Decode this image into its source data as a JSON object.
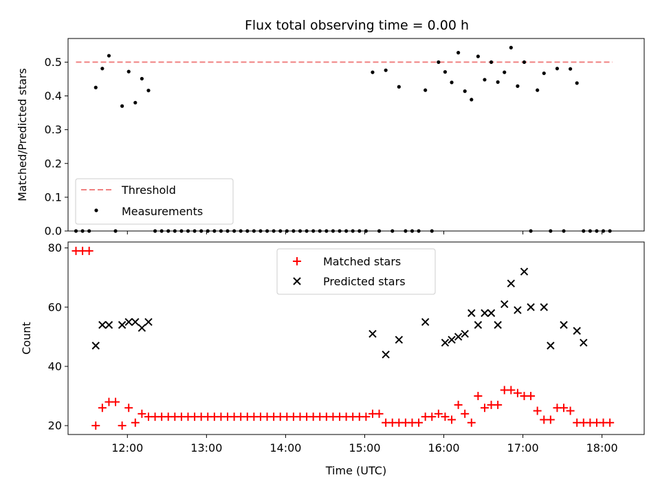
{
  "chart_data": [
    {
      "type": "scatter",
      "title": "Flux total observing time = 0.00 h",
      "xlabel": "",
      "ylabel": "Matched/Predicted stars",
      "xlim": [
        "11:15",
        "18:32"
      ],
      "ylim": [
        0,
        0.57
      ],
      "yticks": [
        "0.0",
        "0.1",
        "0.2",
        "0.3",
        "0.4",
        "0.5"
      ],
      "xtick_labels_shown": false,
      "threshold": {
        "name": "Threshold",
        "value": 0.5,
        "x_range": [
          "11:21",
          "18:08"
        ],
        "color": "#f08080",
        "style": "dashed"
      },
      "legend": {
        "placement": "lower-left",
        "entries": [
          "Threshold",
          "Measurements"
        ]
      },
      "series": [
        {
          "name": "Measurements",
          "marker": "dot",
          "color": "#000000",
          "points": [
            [
              "11:21",
              0
            ],
            [
              "11:26",
              0
            ],
            [
              "11:31",
              0
            ],
            [
              "11:36",
              0.425
            ],
            [
              "11:41",
              0.481
            ],
            [
              "11:46",
              0.519
            ],
            [
              "11:51",
              0
            ],
            [
              "11:56",
              0.37
            ],
            [
              "12:01",
              0.472
            ],
            [
              "12:06",
              0.38
            ],
            [
              "12:11",
              0.451
            ],
            [
              "12:16",
              0.416
            ],
            [
              "12:21",
              0
            ],
            [
              "12:26",
              0
            ],
            [
              "12:31",
              0
            ],
            [
              "12:36",
              0
            ],
            [
              "12:41",
              0
            ],
            [
              "12:46",
              0
            ],
            [
              "12:51",
              0
            ],
            [
              "12:56",
              0
            ],
            [
              "13:01",
              0
            ],
            [
              "13:06",
              0
            ],
            [
              "13:11",
              0
            ],
            [
              "13:16",
              0
            ],
            [
              "13:21",
              0
            ],
            [
              "13:26",
              0
            ],
            [
              "13:31",
              0
            ],
            [
              "13:36",
              0
            ],
            [
              "13:41",
              0
            ],
            [
              "13:46",
              0
            ],
            [
              "13:51",
              0
            ],
            [
              "13:56",
              0
            ],
            [
              "14:01",
              0
            ],
            [
              "14:06",
              0
            ],
            [
              "14:11",
              0
            ],
            [
              "14:16",
              0
            ],
            [
              "14:21",
              0
            ],
            [
              "14:26",
              0
            ],
            [
              "14:31",
              0
            ],
            [
              "14:36",
              0
            ],
            [
              "14:41",
              0
            ],
            [
              "14:46",
              0
            ],
            [
              "14:51",
              0
            ],
            [
              "14:56",
              0
            ],
            [
              "15:01",
              0
            ],
            [
              "15:06",
              0.47
            ],
            [
              "15:11",
              0
            ],
            [
              "15:16",
              0.476
            ],
            [
              "15:21",
              0
            ],
            [
              "15:26",
              0.427
            ],
            [
              "15:31",
              0
            ],
            [
              "15:36",
              0
            ],
            [
              "15:41",
              0
            ],
            [
              "15:46",
              0.417
            ],
            [
              "15:51",
              0
            ],
            [
              "15:56",
              0.5
            ],
            [
              "16:01",
              0.471
            ],
            [
              "16:06",
              0.44
            ],
            [
              "16:11",
              0.528
            ],
            [
              "16:16",
              0.414
            ],
            [
              "16:21",
              0.389
            ],
            [
              "16:26",
              0.517
            ],
            [
              "16:31",
              0.448
            ],
            [
              "16:36",
              0.5
            ],
            [
              "16:41",
              0.441
            ],
            [
              "16:46",
              0.47
            ],
            [
              "16:51",
              0.543
            ],
            [
              "16:56",
              0.429
            ],
            [
              "17:01",
              0.5
            ],
            [
              "17:06",
              0
            ],
            [
              "17:11",
              0.417
            ],
            [
              "17:16",
              0.467
            ],
            [
              "17:21",
              0
            ],
            [
              "17:26",
              0.481
            ],
            [
              "17:31",
              0
            ],
            [
              "17:36",
              0.48
            ],
            [
              "17:41",
              0.438
            ],
            [
              "17:46",
              0
            ],
            [
              "17:51",
              0
            ],
            [
              "17:56",
              0
            ],
            [
              "18:01",
              0
            ],
            [
              "18:06",
              0
            ]
          ]
        }
      ]
    },
    {
      "type": "scatter",
      "title": "",
      "xlabel": "Time (UTC)",
      "ylabel": "Count",
      "xlim": [
        "11:15",
        "18:32"
      ],
      "ylim": [
        17,
        82
      ],
      "xticks": [
        "12:00",
        "13:00",
        "14:00",
        "15:00",
        "16:00",
        "17:00",
        "18:00"
      ],
      "yticks": [
        "20",
        "40",
        "60",
        "80"
      ],
      "legend": {
        "placement": "upper-center",
        "entries": [
          "Matched stars",
          "Predicted stars"
        ]
      },
      "series": [
        {
          "name": "Matched stars",
          "marker": "plus",
          "color": "#ff0000",
          "points": [
            [
              "11:21",
              79
            ],
            [
              "11:26",
              79
            ],
            [
              "11:31",
              79
            ],
            [
              "11:36",
              20
            ],
            [
              "11:41",
              26
            ],
            [
              "11:46",
              28
            ],
            [
              "11:51",
              28
            ],
            [
              "11:56",
              20
            ],
            [
              "12:01",
              26
            ],
            [
              "12:06",
              21
            ],
            [
              "12:11",
              24
            ],
            [
              "12:16",
              23
            ],
            [
              "12:21",
              23
            ],
            [
              "12:26",
              23
            ],
            [
              "12:31",
              23
            ],
            [
              "12:36",
              23
            ],
            [
              "12:41",
              23
            ],
            [
              "12:46",
              23
            ],
            [
              "12:51",
              23
            ],
            [
              "12:56",
              23
            ],
            [
              "13:01",
              23
            ],
            [
              "13:06",
              23
            ],
            [
              "13:11",
              23
            ],
            [
              "13:16",
              23
            ],
            [
              "13:21",
              23
            ],
            [
              "13:26",
              23
            ],
            [
              "13:31",
              23
            ],
            [
              "13:36",
              23
            ],
            [
              "13:41",
              23
            ],
            [
              "13:46",
              23
            ],
            [
              "13:51",
              23
            ],
            [
              "13:56",
              23
            ],
            [
              "14:01",
              23
            ],
            [
              "14:06",
              23
            ],
            [
              "14:11",
              23
            ],
            [
              "14:16",
              23
            ],
            [
              "14:21",
              23
            ],
            [
              "14:26",
              23
            ],
            [
              "14:31",
              23
            ],
            [
              "14:36",
              23
            ],
            [
              "14:41",
              23
            ],
            [
              "14:46",
              23
            ],
            [
              "14:51",
              23
            ],
            [
              "14:56",
              23
            ],
            [
              "15:01",
              23
            ],
            [
              "15:06",
              24
            ],
            [
              "15:11",
              24
            ],
            [
              "15:16",
              21
            ],
            [
              "15:21",
              21
            ],
            [
              "15:26",
              21
            ],
            [
              "15:31",
              21
            ],
            [
              "15:36",
              21
            ],
            [
              "15:41",
              21
            ],
            [
              "15:46",
              23
            ],
            [
              "15:51",
              23
            ],
            [
              "15:56",
              24
            ],
            [
              "16:01",
              23
            ],
            [
              "16:06",
              22
            ],
            [
              "16:11",
              27
            ],
            [
              "16:16",
              24
            ],
            [
              "16:21",
              21
            ],
            [
              "16:26",
              30
            ],
            [
              "16:31",
              26
            ],
            [
              "16:36",
              27
            ],
            [
              "16:41",
              27
            ],
            [
              "16:46",
              32
            ],
            [
              "16:51",
              32
            ],
            [
              "16:56",
              31
            ],
            [
              "17:01",
              30
            ],
            [
              "17:06",
              30
            ],
            [
              "17:11",
              25
            ],
            [
              "17:16",
              22
            ],
            [
              "17:21",
              22
            ],
            [
              "17:26",
              26
            ],
            [
              "17:31",
              26
            ],
            [
              "17:36",
              25
            ],
            [
              "17:41",
              21
            ],
            [
              "17:46",
              21
            ],
            [
              "17:51",
              21
            ],
            [
              "17:56",
              21
            ],
            [
              "18:01",
              21
            ],
            [
              "18:06",
              21
            ]
          ]
        },
        {
          "name": "Predicted stars",
          "marker": "x",
          "color": "#000000",
          "points": [
            [
              "11:36",
              47
            ],
            [
              "11:41",
              54
            ],
            [
              "11:46",
              54
            ],
            [
              "11:56",
              54
            ],
            [
              "12:01",
              55
            ],
            [
              "12:06",
              55
            ],
            [
              "12:11",
              53
            ],
            [
              "12:16",
              55
            ],
            [
              "15:06",
              51
            ],
            [
              "15:16",
              44
            ],
            [
              "15:26",
              49
            ],
            [
              "15:46",
              55
            ],
            [
              "16:01",
              48
            ],
            [
              "16:06",
              49
            ],
            [
              "16:11",
              50
            ],
            [
              "16:16",
              51
            ],
            [
              "16:21",
              58
            ],
            [
              "16:26",
              54
            ],
            [
              "16:31",
              58
            ],
            [
              "16:36",
              58
            ],
            [
              "16:41",
              54
            ],
            [
              "16:46",
              61
            ],
            [
              "16:51",
              68
            ],
            [
              "16:56",
              59
            ],
            [
              "17:01",
              72
            ],
            [
              "17:06",
              60
            ],
            [
              "17:16",
              60
            ],
            [
              "17:21",
              47
            ],
            [
              "17:31",
              54
            ],
            [
              "17:41",
              52
            ],
            [
              "17:46",
              48
            ]
          ]
        }
      ]
    }
  ]
}
